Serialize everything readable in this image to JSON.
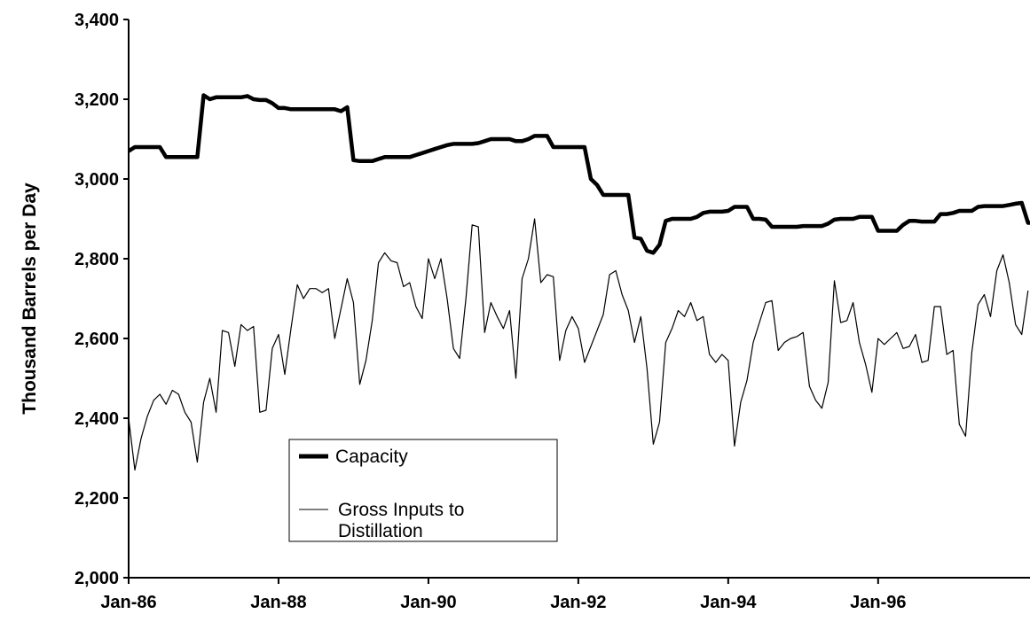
{
  "chart_data": {
    "type": "line",
    "title": "",
    "xlabel": "",
    "ylabel": "Thousand Barrels per Day",
    "x_start": "Jan-86",
    "x_end": "Dec-97",
    "frequency": "monthly",
    "ylim": [
      2000,
      3400
    ],
    "yticks": [
      "2,000",
      "2,200",
      "2,400",
      "2,600",
      "2,800",
      "3,000",
      "3,200",
      "3,400"
    ],
    "xticks": [
      "Jan-86",
      "Jan-88",
      "Jan-90",
      "Jan-92",
      "Jan-94",
      "Jan-96"
    ],
    "grid": false,
    "legend_position": "lower-left",
    "series": [
      {
        "name": "Capacity",
        "color": "#000000",
        "style": "thick",
        "values": [
          3070,
          3080,
          3080,
          3080,
          3080,
          3080,
          3055,
          3055,
          3055,
          3055,
          3055,
          3055,
          3210,
          3200,
          3205,
          3205,
          3205,
          3205,
          3205,
          3208,
          3200,
          3198,
          3198,
          3190,
          3178,
          3178,
          3175,
          3175,
          3175,
          3175,
          3175,
          3175,
          3175,
          3175,
          3170,
          3180,
          3047,
          3045,
          3045,
          3045,
          3050,
          3055,
          3055,
          3055,
          3055,
          3055,
          3060,
          3065,
          3070,
          3075,
          3080,
          3085,
          3088,
          3088,
          3088,
          3088,
          3090,
          3095,
          3100,
          3100,
          3100,
          3100,
          3095,
          3095,
          3100,
          3108,
          3108,
          3108,
          3080,
          3080,
          3080,
          3080,
          3080,
          3080,
          3000,
          2985,
          2960,
          2960,
          2960,
          2960,
          2960,
          2853,
          2850,
          2820,
          2815,
          2835,
          2895,
          2900,
          2900,
          2900,
          2900,
          2905,
          2915,
          2918,
          2918,
          2918,
          2920,
          2930,
          2930,
          2930,
          2900,
          2900,
          2898,
          2880,
          2880,
          2880,
          2880,
          2880,
          2882,
          2882,
          2882,
          2882,
          2888,
          2898,
          2900,
          2900,
          2900,
          2905,
          2905,
          2905,
          2870,
          2870,
          2870,
          2870,
          2885,
          2895,
          2895,
          2893,
          2893,
          2893,
          2912,
          2912,
          2915,
          2920,
          2920,
          2920,
          2930,
          2932,
          2932,
          2932,
          2932,
          2935,
          2938,
          2940,
          2890,
          2890,
          2890
        ]
      },
      {
        "name": "Gross Inputs to Distillation",
        "color": "#000000",
        "style": "thin",
        "values": [
          2400,
          2270,
          2350,
          2405,
          2445,
          2460,
          2435,
          2470,
          2460,
          2415,
          2390,
          2290,
          2440,
          2500,
          2415,
          2620,
          2615,
          2530,
          2635,
          2620,
          2630,
          2415,
          2420,
          2575,
          2610,
          2510,
          2625,
          2735,
          2700,
          2725,
          2725,
          2715,
          2725,
          2600,
          2675,
          2750,
          2690,
          2485,
          2545,
          2645,
          2790,
          2815,
          2795,
          2790,
          2730,
          2740,
          2680,
          2650,
          2800,
          2750,
          2800,
          2700,
          2575,
          2550,
          2700,
          2885,
          2880,
          2615,
          2690,
          2655,
          2625,
          2670,
          2500,
          2750,
          2800,
          2900,
          2740,
          2760,
          2755,
          2545,
          2620,
          2655,
          2625,
          2540,
          2580,
          2620,
          2660,
          2760,
          2770,
          2710,
          2670,
          2590,
          2655,
          2525,
          2335,
          2390,
          2590,
          2625,
          2670,
          2655,
          2690,
          2645,
          2655,
          2560,
          2540,
          2560,
          2545,
          2330,
          2440,
          2495,
          2590,
          2640,
          2690,
          2695,
          2570,
          2590,
          2600,
          2605,
          2615,
          2480,
          2445,
          2425,
          2490,
          2745,
          2640,
          2645,
          2690,
          2590,
          2535,
          2465,
          2600,
          2585,
          2600,
          2615,
          2575,
          2580,
          2610,
          2540,
          2545,
          2680,
          2680,
          2560,
          2570,
          2385,
          2355,
          2565,
          2685,
          2710,
          2655,
          2770,
          2810,
          2740,
          2635,
          2610,
          2720
        ]
      }
    ]
  },
  "legend": {
    "capacity_label": "Capacity",
    "inputs_label_line1": "Gross Inputs to",
    "inputs_label_line2": "Distillation"
  }
}
